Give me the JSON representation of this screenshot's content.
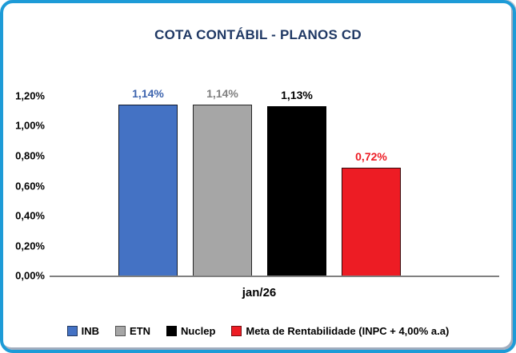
{
  "chart_data": {
    "type": "bar",
    "title": "COTA CONTÁBIL - PLANOS CD",
    "categories": [
      "jan/26"
    ],
    "series": [
      {
        "name": "INB",
        "values": [
          1.14
        ],
        "label": "1,14%",
        "color": "#4472C4",
        "label_color": "#3D64AE"
      },
      {
        "name": "ETN",
        "values": [
          1.14
        ],
        "label": "1,14%",
        "color": "#A6A6A6",
        "label_color": "#7F7F7F"
      },
      {
        "name": "Nuclep",
        "values": [
          1.13
        ],
        "label": "1,13%",
        "color": "#000000",
        "label_color": "#000000"
      },
      {
        "name": "Meta de Rentabilidade (INPC + 4,00% a.a)",
        "values": [
          0.72
        ],
        "label": "0,72%",
        "color": "#ED1C24",
        "label_color": "#ED1C24"
      }
    ],
    "xlabel": "",
    "ylabel": "",
    "ylim": [
      0,
      1.2
    ],
    "yticks": [
      {
        "value": 1.2,
        "label": "1,20%"
      },
      {
        "value": 1.0,
        "label": "1,00%"
      },
      {
        "value": 0.8,
        "label": "0,80%"
      },
      {
        "value": 0.6,
        "label": "0,60%"
      },
      {
        "value": 0.4,
        "label": "0,40%"
      },
      {
        "value": 0.2,
        "label": "0,20%"
      },
      {
        "value": 0.0,
        "label": "0,00%"
      }
    ],
    "grid": false,
    "legend_position": "bottom",
    "colors": {
      "frame_border": "#1D9BD7",
      "title": "#1F3864",
      "axis_line": "#808080",
      "tick_label": "#000000",
      "category_label": "#000000"
    }
  }
}
